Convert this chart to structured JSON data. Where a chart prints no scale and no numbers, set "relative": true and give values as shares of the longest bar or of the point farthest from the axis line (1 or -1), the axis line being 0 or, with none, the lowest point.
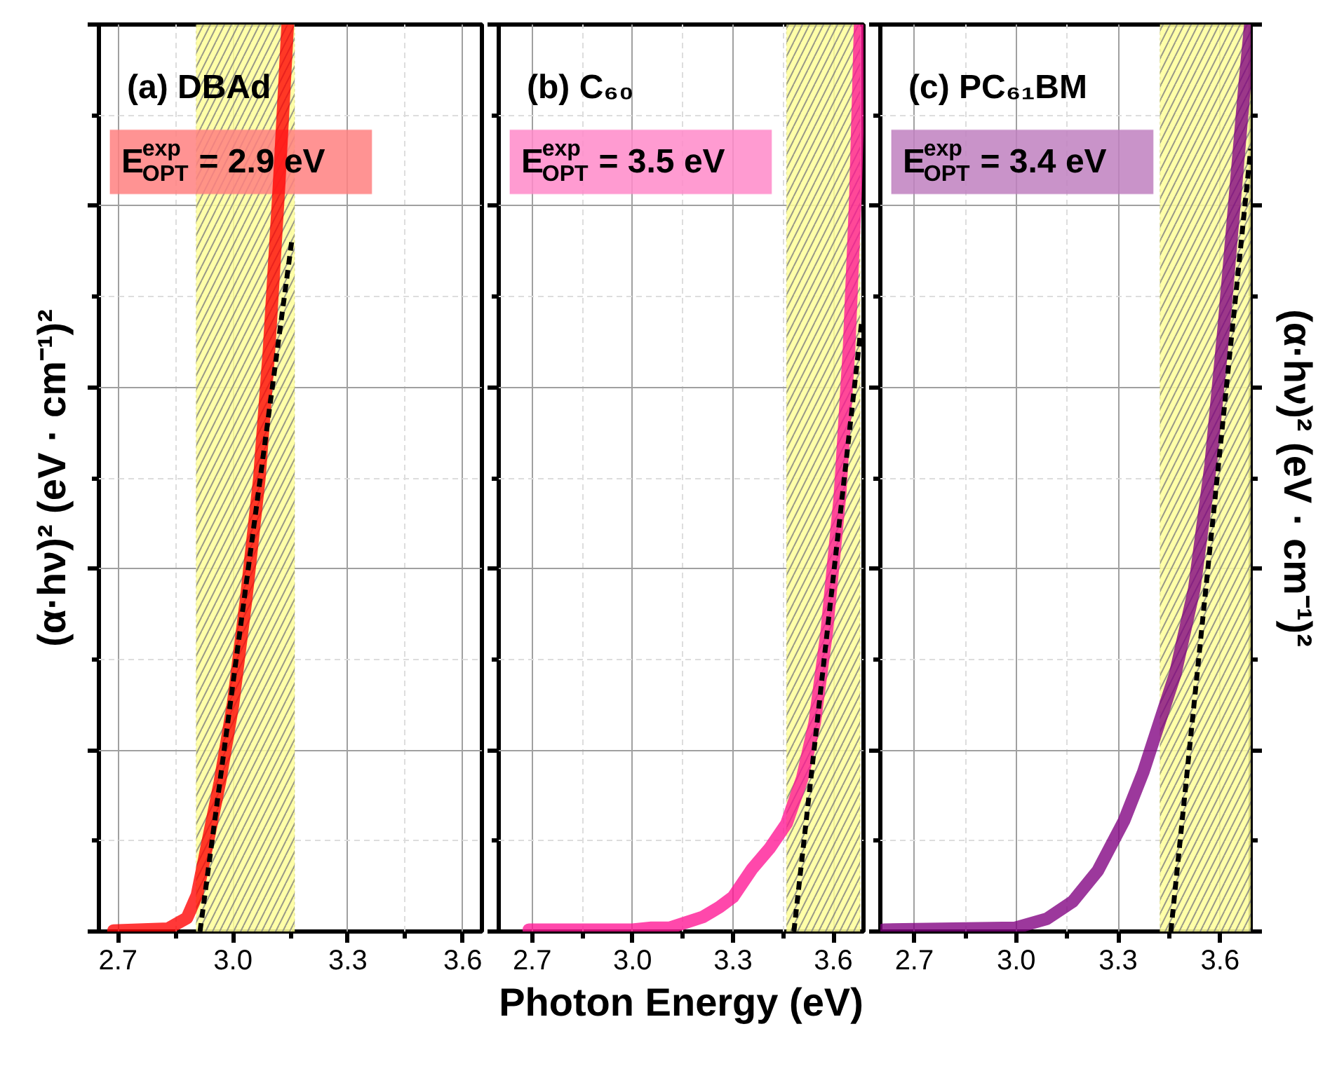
{
  "chart_data": [
    {
      "type": "line",
      "title": "(a) DBAd",
      "ylabel": "(α·hν)² (eV · cm⁻¹)²",
      "relative": true,
      "tick_labels": "x",
      "grid": true,
      "xlim": [
        2.65,
        3.65
      ],
      "xticks": [
        2.7,
        {
          "value": 2.85,
          "label": null
        },
        {
          "value": 3.0,
          "label": "3.0"
        },
        {
          "value": 3.15,
          "label": null
        },
        3.3,
        {
          "value": 3.45,
          "label": null
        },
        3.6
      ],
      "annotations": [
        "E$^{exp}$$_{OPT}$ = 2.9 eV"
      ],
      "bands": [
        {
          "axis": "x",
          "from": 2.904,
          "to": 3.161,
          "color": "#ffff99"
        }
      ],
      "series": [
        {
          "color": "#ff0000",
          "line_style": "solid",
          "x": [
            2.688,
            2.83,
            2.88,
            2.906,
            2.93,
            2.966,
            3.0,
            3.034,
            3.069,
            3.094,
            3.12,
            3.143
          ],
          "values": [
            0.001,
            0.003,
            0.015,
            0.04,
            0.09,
            0.165,
            0.25,
            0.365,
            0.5,
            0.64,
            0.82,
            1.0
          ]
        },
        {
          "color": "#000000",
          "line_style": "dashed",
          "x": [
            2.914,
            3.155
          ],
          "values": [
            0,
            0.766
          ]
        }
      ]
    },
    {
      "type": "line",
      "title": "(b) C₆₀",
      "xlabel": "Photon Energy (eV)",
      "relative": true,
      "tick_labels": "x",
      "grid": true,
      "xlim": [
        2.6,
        3.69
      ],
      "xticks": [
        2.7,
        {
          "value": 2.85,
          "label": null
        },
        {
          "value": 3.0,
          "label": "3.0"
        },
        {
          "value": 3.15,
          "label": null
        },
        3.3,
        {
          "value": 3.45,
          "label": null
        },
        3.6
      ],
      "annotations": [
        "E$^{exp}$$_{OPT}$ = 3.5 eV"
      ],
      "bands": [
        {
          "axis": "x",
          "from": 3.46,
          "to": 3.68,
          "color": "#ffff99"
        }
      ],
      "series": [
        {
          "color": "#ff1493",
          "line_style": "solid",
          "x": [
            2.69,
            3.0,
            3.056,
            3.11,
            3.21,
            3.26,
            3.3,
            3.357,
            3.41,
            3.46,
            3.507,
            3.544,
            3.58,
            3.62,
            3.647,
            3.666,
            3.68
          ],
          "values": [
            0.002,
            0.002,
            0.004,
            0.004,
            0.016,
            0.027,
            0.038,
            0.069,
            0.092,
            0.119,
            0.169,
            0.23,
            0.33,
            0.482,
            0.644,
            0.811,
            1.0
          ]
        },
        {
          "color": "#000000",
          "line_style": "dashed",
          "x": [
            3.482,
            3.685
          ],
          "values": [
            0,
            0.674
          ]
        }
      ]
    },
    {
      "type": "line",
      "title": "(c) PC₆₁BM",
      "y2label": "(α·hν)² (eV · cm⁻¹)²",
      "relative": true,
      "tick_labels": "x",
      "grid": true,
      "xlim": [
        2.6,
        3.69
      ],
      "xticks": [
        2.7,
        {
          "value": 2.85,
          "label": null
        },
        {
          "value": 3.0,
          "label": "3.0"
        },
        {
          "value": 3.15,
          "label": null
        },
        3.3,
        {
          "value": 3.45,
          "label": null
        },
        3.6
      ],
      "annotations": [
        "E$^{exp}$$_{OPT}$ = 3.4 eV"
      ],
      "bands": [
        {
          "axis": "x",
          "from": 3.423,
          "to": 3.69,
          "color": "#ffff99"
        }
      ],
      "series": [
        {
          "color": "#800080",
          "line_style": "solid",
          "x": [
            2.61,
            2.996,
            3.09,
            3.166,
            3.24,
            3.317,
            3.374,
            3.42,
            3.468,
            3.524,
            3.572,
            3.61,
            3.647,
            3.672,
            3.689
          ],
          "values": [
            0.002,
            0.004,
            0.014,
            0.033,
            0.067,
            0.122,
            0.176,
            0.229,
            0.284,
            0.378,
            0.514,
            0.663,
            0.824,
            0.933,
            1.0
          ]
        },
        {
          "color": "#000000",
          "line_style": "dashed",
          "x": [
            3.455,
            3.69
          ],
          "values": [
            0,
            0.863
          ]
        }
      ]
    }
  ]
}
